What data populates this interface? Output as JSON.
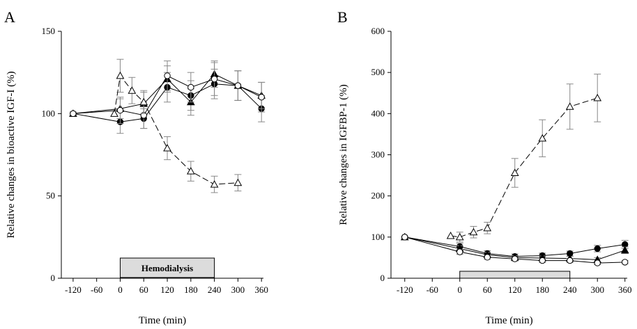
{
  "chart_data": [
    {
      "type": "line",
      "panel_label": "A",
      "xlabel": "Time (min)",
      "ylabel": "Relative changes in bioactive IGF-I (%)",
      "xlim": [
        -150,
        365
      ],
      "ylim": [
        0,
        150
      ],
      "xticks": [
        -120,
        -60,
        0,
        60,
        120,
        180,
        240,
        300,
        360
      ],
      "yticks": [
        0,
        50,
        100,
        150
      ],
      "bar": {
        "label": "Hemodialysis",
        "x_start": 0,
        "x_end": 240
      },
      "series": [
        {
          "marker": "filled-circle",
          "dashed": false,
          "x": [
            -120,
            0,
            60,
            120,
            180,
            240,
            300,
            360
          ],
          "y": [
            100,
            95,
            97,
            116,
            111,
            118,
            117,
            103
          ],
          "err": [
            1,
            7,
            6,
            9,
            9,
            9,
            9,
            8
          ]
        },
        {
          "marker": "filled-triangle",
          "dashed": false,
          "x": [
            -120,
            0,
            60,
            120,
            180,
            240,
            300,
            360
          ],
          "y": [
            100,
            103,
            106,
            121,
            107,
            124,
            117,
            111
          ],
          "err": [
            1,
            6,
            7,
            8,
            8,
            8,
            9,
            8
          ]
        },
        {
          "marker": "open-circle",
          "dashed": false,
          "x": [
            -120,
            0,
            60,
            120,
            180,
            240,
            300,
            360
          ],
          "y": [
            100,
            102,
            99,
            123,
            116,
            121,
            117,
            110
          ],
          "err": [
            1,
            8,
            8,
            9,
            9,
            10,
            9,
            9
          ]
        },
        {
          "marker": "open-triangle",
          "dashed": true,
          "x": [
            -15,
            0,
            30,
            60,
            120,
            180,
            240,
            300
          ],
          "y": [
            100,
            123,
            114,
            107,
            79,
            65,
            57,
            58
          ],
          "err": [
            0,
            10,
            8,
            7,
            7,
            6,
            5,
            5
          ]
        }
      ]
    },
    {
      "type": "line",
      "panel_label": "B",
      "xlabel": "Time (min)",
      "ylabel": "Relative changes in IGFBP-1 (%)",
      "xlim": [
        -150,
        365
      ],
      "ylim": [
        0,
        600
      ],
      "xticks": [
        -120,
        -60,
        0,
        60,
        120,
        180,
        240,
        300,
        360
      ],
      "yticks": [
        0,
        100,
        200,
        300,
        400,
        500,
        600
      ],
      "bar": {
        "label": "",
        "x_start": 0,
        "x_end": 240
      },
      "series": [
        {
          "marker": "filled-circle",
          "dashed": false,
          "x": [
            -120,
            0,
            60,
            120,
            180,
            240,
            300,
            360
          ],
          "y": [
            100,
            77,
            60,
            53,
            55,
            60,
            72,
            82
          ],
          "err": [
            2,
            8,
            7,
            6,
            6,
            6,
            8,
            10
          ]
        },
        {
          "marker": "filled-triangle",
          "dashed": false,
          "x": [
            -120,
            0,
            60,
            120,
            180,
            240,
            300,
            360
          ],
          "y": [
            100,
            72,
            57,
            50,
            49,
            48,
            45,
            68
          ],
          "err": [
            2,
            7,
            6,
            5,
            5,
            5,
            5,
            8
          ]
        },
        {
          "marker": "open-circle",
          "dashed": false,
          "x": [
            -120,
            0,
            60,
            120,
            180,
            240,
            300,
            360
          ],
          "y": [
            100,
            64,
            51,
            47,
            43,
            43,
            37,
            39
          ],
          "err": [
            2,
            6,
            5,
            5,
            5,
            5,
            4,
            4
          ]
        },
        {
          "marker": "open-triangle",
          "dashed": true,
          "x": [
            -20,
            0,
            30,
            60,
            120,
            180,
            240,
            300
          ],
          "y": [
            103,
            100,
            112,
            122,
            256,
            340,
            417,
            438
          ],
          "err": [
            0,
            12,
            14,
            14,
            35,
            45,
            55,
            58
          ]
        }
      ]
    }
  ]
}
